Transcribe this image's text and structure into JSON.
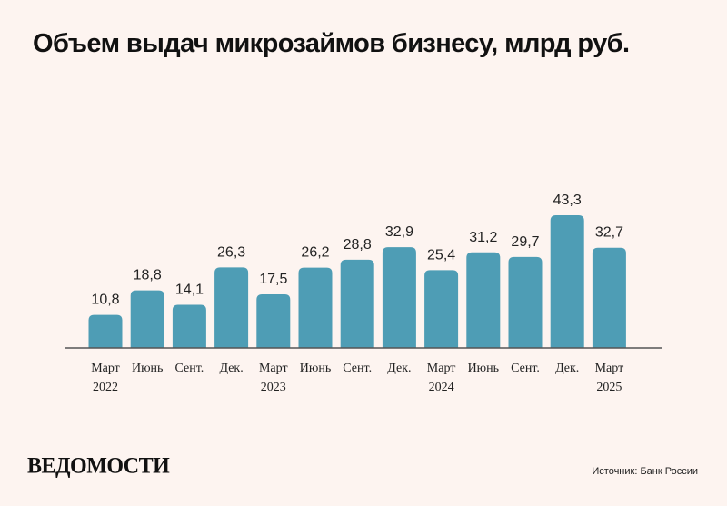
{
  "title": "Объем выдач микрозаймов бизнесу, млрд руб.",
  "source": "Источник: Банк России",
  "logo": "ВЕДОМОСТИ",
  "colors": {
    "bar": "#4e9db5",
    "background": "#fdf4f0",
    "axis": "#555555",
    "text": "#222222"
  },
  "chart_data": {
    "type": "bar",
    "title": "Объем выдач микрозаймов бизнесу, млрд руб.",
    "categories": [
      "Март",
      "Июнь",
      "Сент.",
      "Дек.",
      "Март",
      "Июнь",
      "Сент.",
      "Дек.",
      "Март",
      "Июнь",
      "Сент.",
      "Дек.",
      "Март"
    ],
    "years": [
      "2022",
      "",
      "",
      "",
      "2023",
      "",
      "",
      "",
      "2024",
      "",
      "",
      "",
      "2025"
    ],
    "values": [
      10.8,
      18.8,
      14.1,
      26.3,
      17.5,
      26.2,
      28.8,
      32.9,
      25.4,
      31.2,
      29.7,
      43.3,
      32.7
    ],
    "value_labels": [
      "10,8",
      "18,8",
      "14,1",
      "26,3",
      "17,5",
      "26,2",
      "28,8",
      "32,9",
      "25,4",
      "31,2",
      "29,7",
      "43,3",
      "32,7"
    ],
    "ylim": [
      0,
      43.3
    ],
    "xlabel": "",
    "ylabel": "",
    "grid": false,
    "legend": "none"
  }
}
